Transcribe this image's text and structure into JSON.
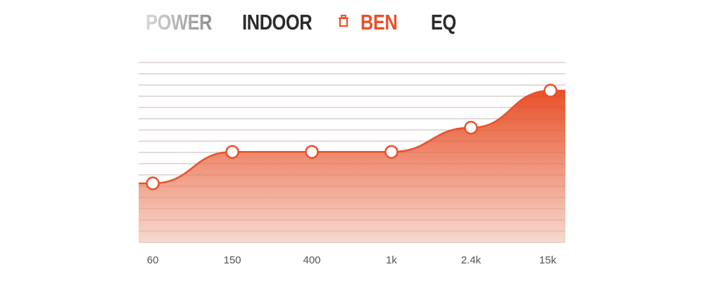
{
  "tabs": [
    {
      "label": "POWER",
      "state": "faded"
    },
    {
      "label": "INDOOR",
      "state": "normal"
    },
    {
      "label": "BEN",
      "state": "selected",
      "icon": "trash-icon"
    },
    {
      "label": "EQ",
      "state": "normal"
    }
  ],
  "colors": {
    "accent": "#e8512a",
    "text": "#2b2b2b",
    "grid": "#e3e3e3"
  },
  "chart_data": {
    "type": "area",
    "categories": [
      "60",
      "150",
      "400",
      "1k",
      "2.4k",
      "15k"
    ],
    "values": [
      5.25,
      8.05,
      8.05,
      8.05,
      10.2,
      13.5
    ],
    "ylim": [
      0,
      16
    ],
    "grid": true,
    "xlabel": "",
    "ylabel": ""
  }
}
